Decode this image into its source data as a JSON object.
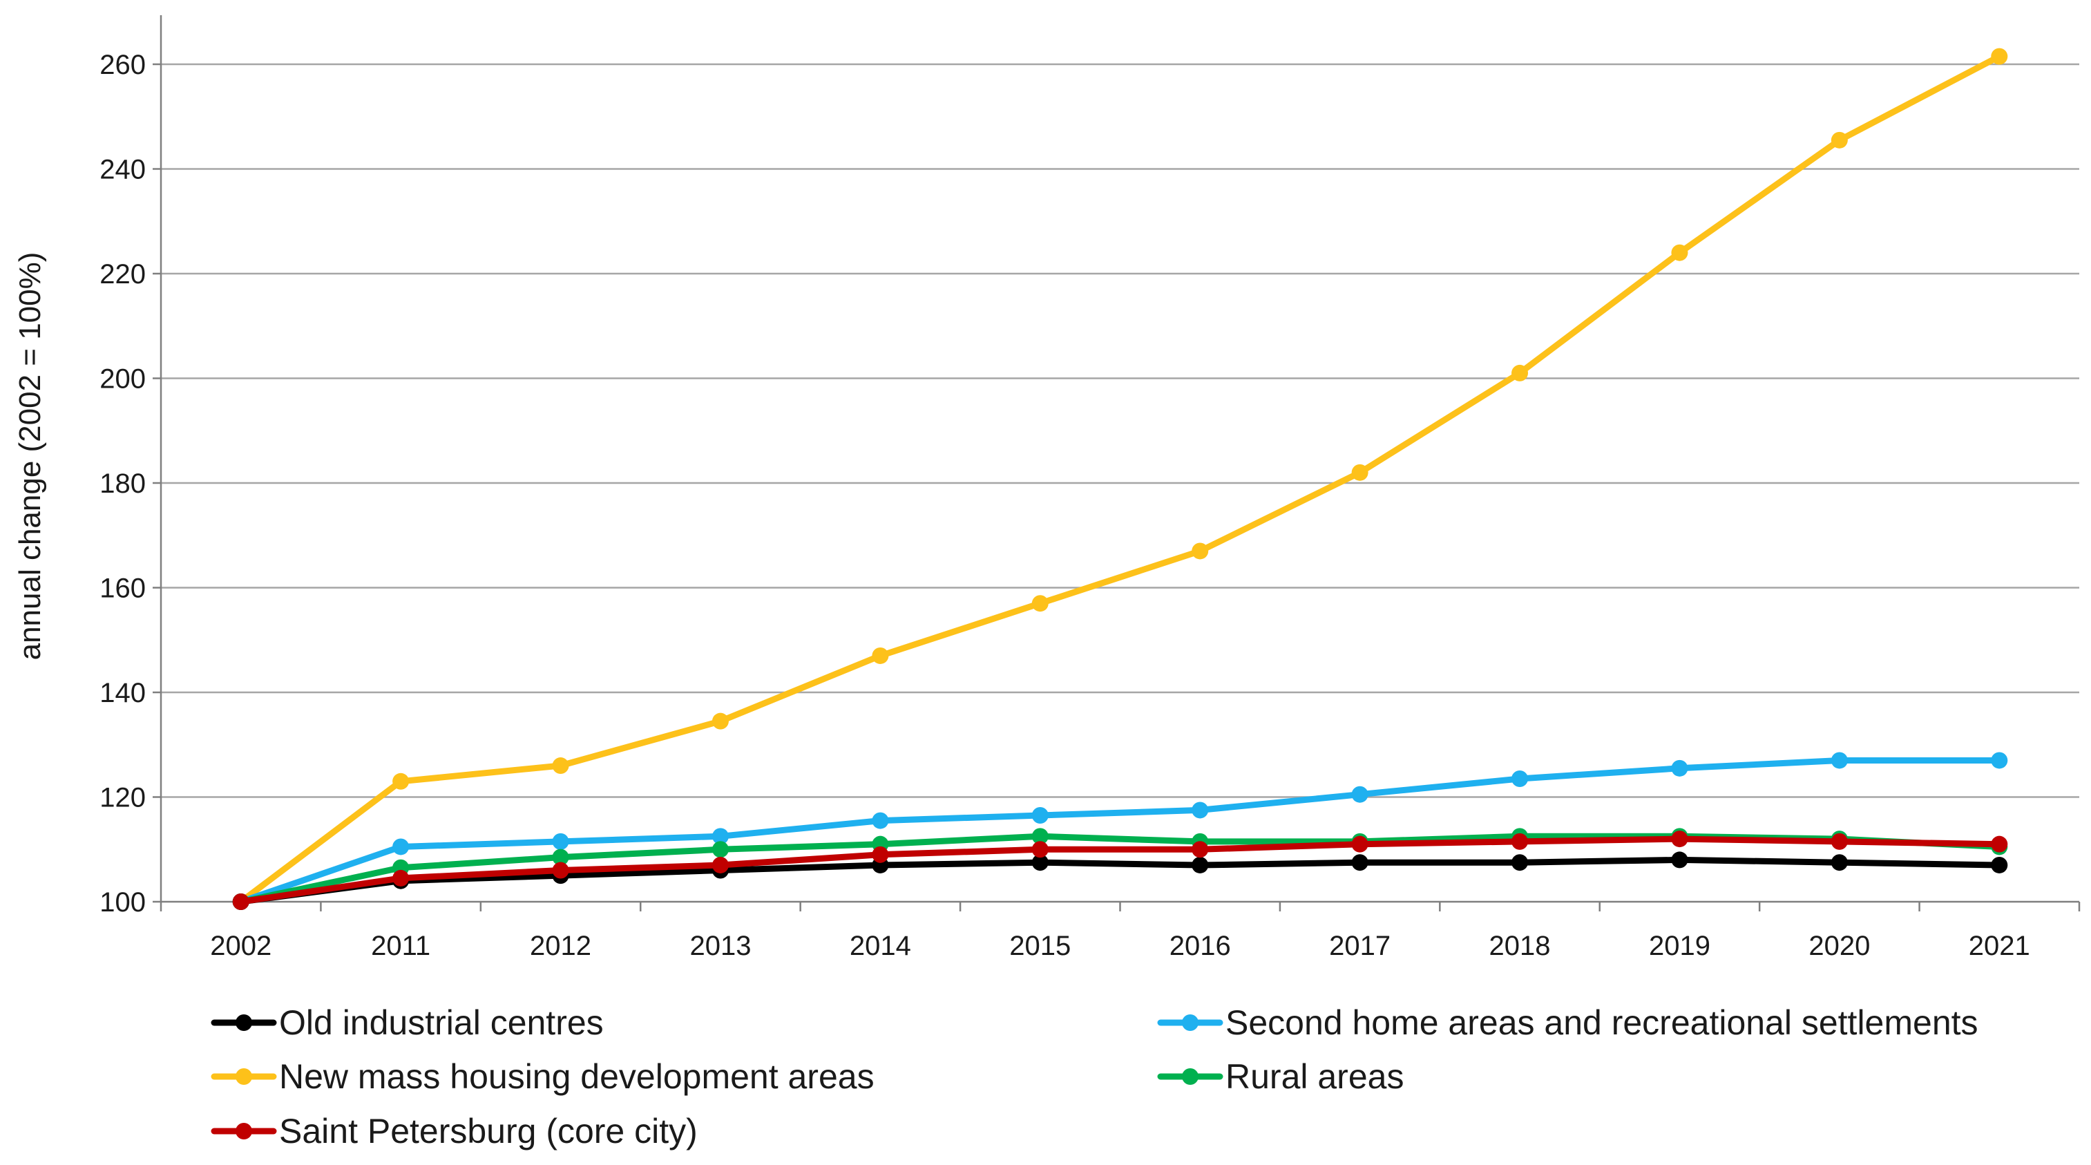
{
  "chart_data": {
    "type": "line",
    "title": "",
    "xlabel": "",
    "ylabel": "annual change (2002 = 100%)",
    "ylim": [
      100,
      270
    ],
    "yticks": [
      100,
      120,
      140,
      160,
      180,
      200,
      220,
      240,
      260
    ],
    "categories": [
      "2002",
      "2011",
      "2012",
      "2013",
      "2014",
      "2015",
      "2016",
      "2017",
      "2018",
      "2019",
      "2020",
      "2021"
    ],
    "grid": "horizontal",
    "legend_position": "bottom",
    "series": [
      {
        "name": "Old industrial centres",
        "color": "#000000",
        "values": [
          100,
          104,
          105,
          106,
          107,
          107.5,
          107,
          107.5,
          107.5,
          108,
          107.5,
          107
        ]
      },
      {
        "name": "Second home areas and recreational settlements",
        "color": "#1fb0ef",
        "values": [
          100,
          110.5,
          111.5,
          112.5,
          115.5,
          116.5,
          117.5,
          120.5,
          123.5,
          125.5,
          127,
          127
        ]
      },
      {
        "name": "New mass housing development areas",
        "color": "#fdc11a",
        "values": [
          100,
          123,
          126,
          134.5,
          147,
          157,
          167,
          182,
          201,
          224,
          245.5,
          261.5
        ]
      },
      {
        "name": "Rural areas",
        "color": "#00b04f",
        "values": [
          100,
          106.5,
          108.5,
          110,
          111,
          112.5,
          111.5,
          111.5,
          112.5,
          112.5,
          112,
          110.5
        ]
      },
      {
        "name": "Saint Petersburg (core city)",
        "color": "#c00000",
        "values": [
          100,
          104.5,
          106,
          107,
          109,
          110,
          110,
          111,
          111.5,
          112,
          111.5,
          111
        ]
      }
    ]
  }
}
